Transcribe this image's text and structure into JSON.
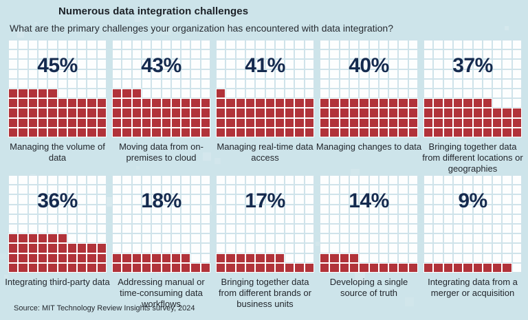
{
  "header": {
    "title": "Numerous data integration challenges",
    "subtitle": "What are the primary challenges your organization has encountered with data integration?"
  },
  "chart_data": {
    "type": "waffle",
    "title": "Numerous data integration challenges",
    "subtitle": "What are the primary challenges your organization has encountered with data integration?",
    "layout": {
      "panel_rows": 2,
      "panel_cols": 5,
      "grid_rows": 10,
      "grid_cols": 10,
      "unit_per_cell_percent": 1,
      "fill_order": "bottom-up-left-to-right"
    },
    "categories": [
      "Managing the volume of data",
      "Moving data from on-premises to cloud",
      "Managing real-time data access",
      "Managing changes to data",
      "Bringing together data from different locations or geographies",
      "Integrating third-party data",
      "Addressing manual or time-consuming data workflows",
      "Bringing together data from different brands or business units",
      "Developing a single source of truth",
      "Integrating data from a merger or acquisition"
    ],
    "values": [
      45,
      43,
      41,
      40,
      37,
      36,
      18,
      17,
      14,
      9
    ],
    "panels": [
      {
        "value": 45,
        "display": "45%",
        "label": "Managing the volume of data"
      },
      {
        "value": 43,
        "display": "43%",
        "label": "Moving data from on-premises to cloud"
      },
      {
        "value": 41,
        "display": "41%",
        "label": "Managing real-time data access"
      },
      {
        "value": 40,
        "display": "40%",
        "label": "Managing changes to data"
      },
      {
        "value": 37,
        "display": "37%",
        "label": "Bringing together data from different locations or geographies"
      },
      {
        "value": 36,
        "display": "36%",
        "label": "Integrating third-party data"
      },
      {
        "value": 18,
        "display": "18%",
        "label": "Addressing manual or time-consuming data workflows"
      },
      {
        "value": 17,
        "display": "17%",
        "label": "Bringing together data from different brands or business units"
      },
      {
        "value": 14,
        "display": "14%",
        "label": "Developing a single source of truth"
      },
      {
        "value": 9,
        "display": "9%",
        "label": "Integrating data from a merger or acquisition"
      }
    ],
    "colors": {
      "filled": "#b1333a",
      "empty_cell": "#fdfefe",
      "gridline": "#cfe3ea",
      "percent_text": "#152a4e",
      "background": "#cde4ea"
    }
  },
  "footer": {
    "source": "Source: MIT Technology Review Insights survey, 2024"
  }
}
